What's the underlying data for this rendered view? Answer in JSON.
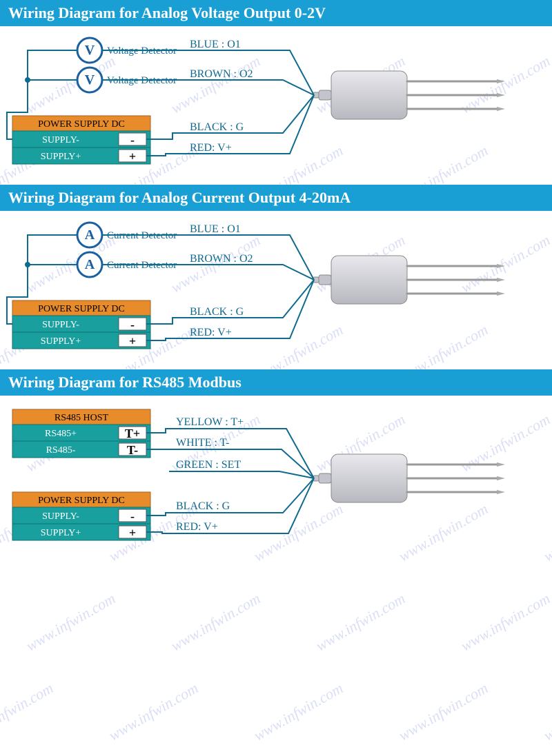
{
  "watermark_text": "www.infwin.com",
  "colors": {
    "title_bg": "#1a9fd4",
    "wire": "#0f6a8f",
    "meter_stroke": "#1a5fa0",
    "meter_text": "#1a5fa0",
    "psu_header_bg": "#e88b2a",
    "psu_body_bg": "#1a9f9f",
    "label": "#0f6a8f",
    "sensor_light": "#e8e8ed",
    "sensor_dark": "#b8b8c0"
  },
  "diagrams": [
    {
      "title": "Wiring Diagram for Analog Voltage Output 0-2V",
      "type": "analog",
      "meter_letter": "V",
      "meter_label": "Voltage Detector",
      "wires": [
        {
          "label": "BLUE : O1"
        },
        {
          "label": "BROWN : O2"
        },
        {
          "label": "BLACK : G"
        },
        {
          "label": "RED: V+"
        }
      ],
      "psu": {
        "header": "POWER SUPPLY DC",
        "rows": [
          {
            "l": "SUPPLY-",
            "s": "-"
          },
          {
            "l": "SUPPLY+",
            "s": "+"
          }
        ]
      }
    },
    {
      "title": "Wiring Diagram for Analog Current Output 4-20mA",
      "type": "analog",
      "meter_letter": "A",
      "meter_label": "Current Detector",
      "wires": [
        {
          "label": "BLUE : O1"
        },
        {
          "label": "BROWN : O2"
        },
        {
          "label": "BLACK : G"
        },
        {
          "label": "RED: V+"
        }
      ],
      "psu": {
        "header": "POWER SUPPLY DC",
        "rows": [
          {
            "l": "SUPPLY-",
            "s": "-"
          },
          {
            "l": "SUPPLY+",
            "s": "+"
          }
        ]
      }
    },
    {
      "title": "Wiring Diagram for RS485 Modbus",
      "type": "rs485",
      "hosts": [
        {
          "header": "RS485 HOST",
          "rows": [
            {
              "l": "RS485+",
              "s": "T+"
            },
            {
              "l": "RS485-",
              "s": "T-"
            }
          ]
        },
        {
          "header": "POWER SUPPLY DC",
          "rows": [
            {
              "l": "SUPPLY-",
              "s": "-"
            },
            {
              "l": "SUPPLY+",
              "s": "+"
            }
          ]
        }
      ],
      "wires": [
        {
          "label": "YELLOW : T+"
        },
        {
          "label": "WHITE : T-"
        },
        {
          "label": "GREEN : SET"
        },
        {
          "label": "BLACK : G"
        },
        {
          "label": "RED: V+"
        }
      ]
    }
  ]
}
